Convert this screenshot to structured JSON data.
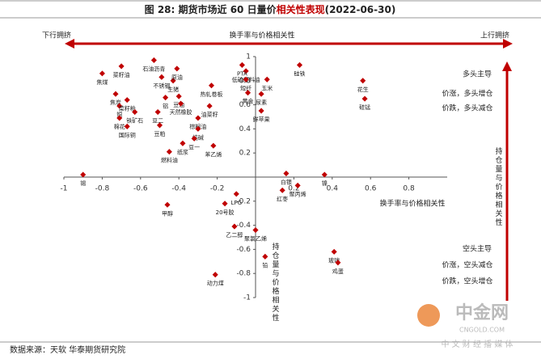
{
  "chart_data": {
    "type": "scatter",
    "title_prefix": "图 28: 期货市场近 60 日量价",
    "title_highlight": "相关性表现",
    "title_suffix": "(2022-06-30)",
    "top_arrow": {
      "left": "下行拥挤",
      "center": "换手率与价格相关性",
      "right": "上行拥挤"
    },
    "right_arrow_label": "持仓量与价格相关性",
    "x_label": "换手率与价格相关性",
    "y_label": "持仓量与价格相关性",
    "upper_quadrant": [
      "多头主导",
      "价涨，多头增仓",
      "价跌，多头减仓"
    ],
    "lower_quadrant": [
      "空头主导",
      "价涨，空头减仓",
      "价跌，空头增仓"
    ],
    "source": "数据来源：天软 华泰期货研究院",
    "watermark": {
      "name": "中金网",
      "site": "CNGOLD.COM",
      "slogan": "中 文 财 经 播 媒 体"
    },
    "color": "#c00000",
    "xlim": [
      -1,
      1
    ],
    "ylim": [
      -1,
      1
    ],
    "xticks": [
      -1,
      -0.8,
      -0.6,
      -0.4,
      -0.2,
      0.2,
      0.4,
      0.6,
      0.8
    ],
    "yticks": [
      -1,
      -0.8,
      -0.6,
      -0.4,
      -0.2,
      0.2,
      0.4,
      0.6,
      0.8,
      1
    ],
    "labels": [
      "锡",
      "焦煤",
      "菜籽油",
      "焦炭",
      "铜",
      "菜籽粕",
      "棉花",
      "铁矿石",
      "国际铜",
      "石油沥青",
      "不锈钢",
      "铝",
      "豆二",
      "生猪",
      "豆粕",
      "燃料油",
      "原油",
      "豆油",
      "热轧卷板",
      "天然橡胶",
      "油菜籽",
      "棕榈油",
      "纯碱",
      "豆一",
      "纸浆",
      "苯乙烯",
      "低硫燃料油",
      "PTA",
      "短纤",
      "玉米",
      "尿素",
      "黄金",
      "鲜苹果",
      "硅铁",
      "花生",
      "硅锰",
      "白银",
      "镍",
      "红枣",
      "聚丙烯",
      "甲醇",
      "LPG",
      "20号胶",
      "乙二醇",
      "聚氯乙烯",
      "铅",
      "动力煤",
      "玻璃",
      "鸡蛋"
    ],
    "x": [
      -0.9,
      -0.8,
      -0.7,
      -0.73,
      -0.71,
      -0.67,
      -0.71,
      -0.63,
      -0.67,
      -0.53,
      -0.49,
      -0.47,
      -0.51,
      -0.43,
      -0.5,
      -0.45,
      -0.41,
      -0.4,
      -0.23,
      -0.39,
      -0.24,
      -0.3,
      -0.3,
      -0.32,
      -0.38,
      -0.22,
      -0.05,
      -0.07,
      -0.05,
      0.06,
      0.03,
      -0.04,
      0.03,
      0.23,
      0.56,
      0.57,
      0.16,
      0.36,
      0.14,
      0.22,
      -0.46,
      -0.1,
      -0.16,
      -0.11,
      0.0,
      0.05,
      -0.21,
      0.41,
      0.43
    ],
    "y": [
      0.02,
      0.86,
      0.92,
      0.69,
      0.59,
      0.64,
      0.49,
      0.54,
      0.42,
      0.97,
      0.83,
      0.66,
      0.54,
      0.8,
      0.43,
      0.21,
      0.9,
      0.67,
      0.76,
      0.61,
      0.59,
      0.49,
      0.4,
      0.32,
      0.28,
      0.26,
      0.88,
      0.93,
      0.81,
      0.81,
      0.69,
      0.7,
      0.55,
      0.93,
      0.8,
      0.65,
      0.03,
      0.02,
      -0.11,
      -0.07,
      -0.23,
      -0.14,
      -0.22,
      -0.41,
      -0.44,
      -0.66,
      -0.81,
      -0.62,
      -0.71
    ]
  }
}
